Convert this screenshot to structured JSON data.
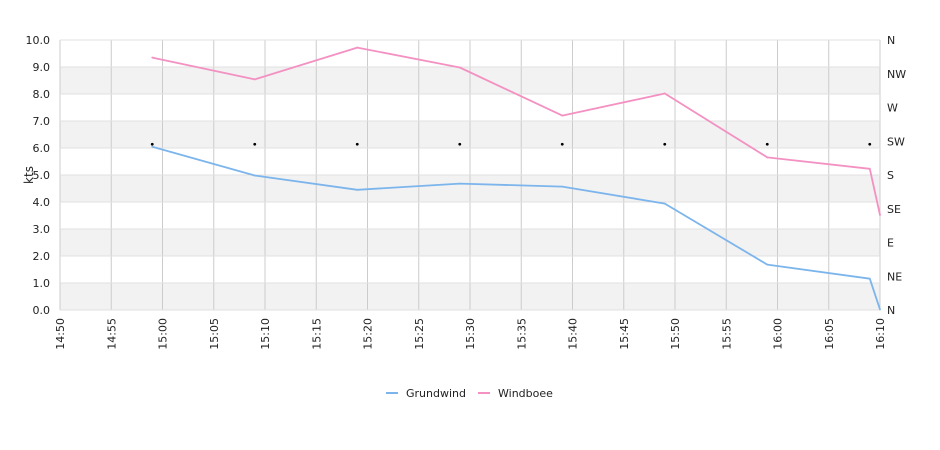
{
  "chart_data": {
    "type": "line",
    "title": "",
    "xlabel": "",
    "ylabel": "kts",
    "ylim": [
      0,
      10
    ],
    "y_ticks": [
      "0.0",
      "1.0",
      "2.0",
      "3.0",
      "4.0",
      "5.0",
      "6.0",
      "7.0",
      "8.0",
      "9.0",
      "10.0"
    ],
    "x_range": [
      "14:50",
      "16:10"
    ],
    "x_ticks": [
      "14:50",
      "14:55",
      "15:00",
      "15:05",
      "15:10",
      "15:15",
      "15:20",
      "15:25",
      "15:30",
      "15:35",
      "15:40",
      "15:45",
      "15:50",
      "15:55",
      "16:00",
      "16:05",
      "16:10"
    ],
    "right_axis_ticks": [
      "N",
      "NE",
      "E",
      "SE",
      "S",
      "SW",
      "W",
      "NW",
      "N"
    ],
    "grid": true,
    "legend_position": "bottom",
    "series": [
      {
        "name": "Grundwind",
        "color": "#7cb5ec",
        "x": [
          "14:59",
          "15:09",
          "15:19",
          "15:29",
          "15:39",
          "15:49",
          "15:59",
          "16:09",
          "16:10"
        ],
        "values": [
          6.05,
          4.98,
          4.45,
          4.68,
          4.57,
          3.94,
          1.68,
          1.16,
          0.02
        ]
      },
      {
        "name": "Windboee",
        "color": "#f391c2",
        "x": [
          "14:59",
          "15:09",
          "15:19",
          "15:29",
          "15:39",
          "15:49",
          "15:59",
          "16:09",
          "16:10"
        ],
        "values": [
          9.35,
          8.54,
          9.72,
          8.98,
          7.2,
          8.02,
          5.65,
          5.23,
          3.52
        ]
      },
      {
        "name": "",
        "type": "scatter",
        "axis": "right",
        "color": "#000000",
        "x": [
          "14:59",
          "15:09",
          "15:19",
          "15:29",
          "15:39",
          "15:49",
          "15:59",
          "16:09"
        ],
        "values": [
          "SW",
          "SW",
          "SW",
          "SW",
          "SW",
          "SW",
          "SW",
          "SW"
        ]
      }
    ]
  }
}
